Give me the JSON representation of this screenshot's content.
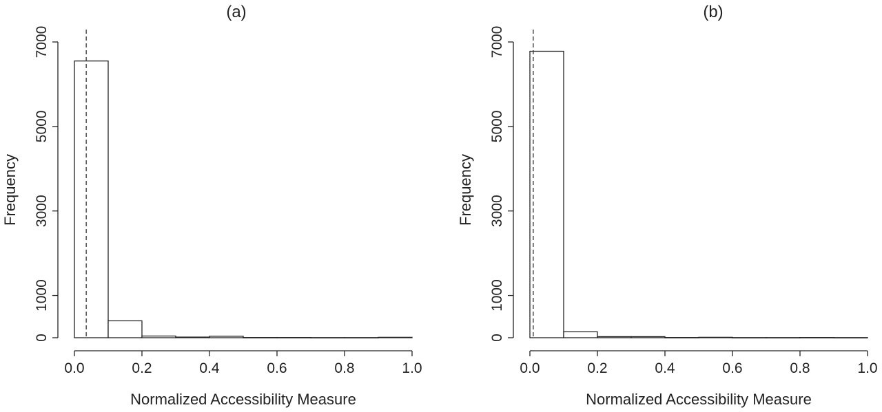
{
  "chart_data": [
    {
      "type": "bar",
      "title": "(a)",
      "xlabel": "Normalized Accessibility Measure",
      "ylabel": "Frequency",
      "xlim": [
        0,
        1
      ],
      "ylim": [
        0,
        7000
      ],
      "xticks": [
        "0.0",
        "0.2",
        "0.4",
        "0.6",
        "0.8",
        "1.0"
      ],
      "yticks": [
        "0",
        "1000",
        "3000",
        "5000",
        "7000"
      ],
      "bins": [
        [
          0.0,
          0.1
        ],
        [
          0.1,
          0.2
        ],
        [
          0.2,
          0.3
        ],
        [
          0.3,
          0.4
        ],
        [
          0.4,
          0.5
        ],
        [
          0.5,
          0.6
        ],
        [
          0.6,
          0.7
        ],
        [
          0.7,
          0.8
        ],
        [
          0.8,
          0.9
        ],
        [
          0.9,
          1.0
        ]
      ],
      "values": [
        6550,
        400,
        40,
        15,
        35,
        5,
        5,
        3,
        3,
        10
      ],
      "reference_line_x": 0.035,
      "reference_line_style": "dashed",
      "grid": false
    },
    {
      "type": "bar",
      "title": "(b)",
      "xlabel": "Normalized Accessibility Measure",
      "ylabel": "Frequency",
      "xlim": [
        0,
        1
      ],
      "ylim": [
        0,
        7000
      ],
      "xticks": [
        "0.0",
        "0.2",
        "0.4",
        "0.6",
        "0.8",
        "1.0"
      ],
      "yticks": [
        "0",
        "1000",
        "3000",
        "5000",
        "7000"
      ],
      "bins": [
        [
          0.0,
          0.1
        ],
        [
          0.1,
          0.2
        ],
        [
          0.2,
          0.3
        ],
        [
          0.3,
          0.4
        ],
        [
          0.4,
          0.5
        ],
        [
          0.5,
          0.6
        ],
        [
          0.6,
          0.7
        ],
        [
          0.7,
          0.8
        ],
        [
          0.8,
          0.9
        ],
        [
          0.9,
          1.0
        ]
      ],
      "values": [
        6780,
        140,
        25,
        25,
        5,
        10,
        3,
        3,
        5,
        3
      ],
      "reference_line_x": 0.01,
      "reference_line_style": "dashed",
      "grid": false
    }
  ]
}
